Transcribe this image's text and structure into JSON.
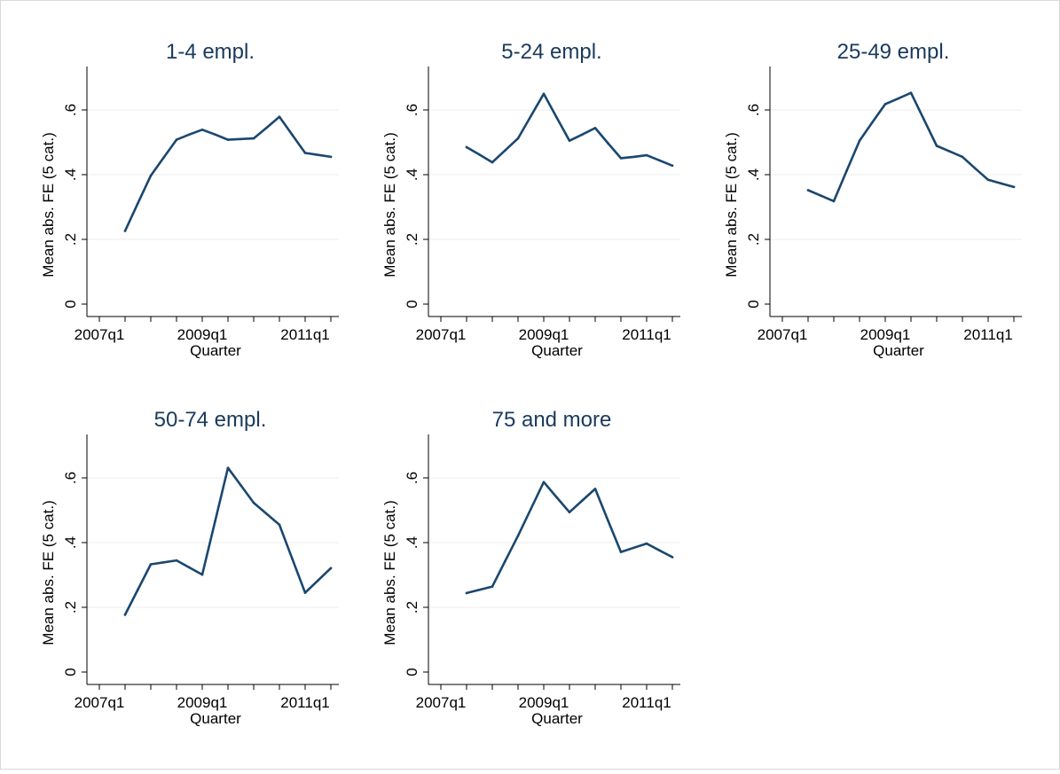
{
  "figure": {
    "background": "#ffffff",
    "frame_color": "#d9d9d9"
  },
  "chart_data": [
    {
      "type": "line",
      "title": "1-4 empl.",
      "xlabel": "Quarter",
      "ylabel": "Mean abs. FE (5 cat.)",
      "x_ticks": [
        "2007q1",
        "2009q1",
        "2011q1"
      ],
      "y_ticks": [
        "0",
        ".2",
        ".4",
        ".6"
      ],
      "ylim": [
        0,
        0.72
      ],
      "grid": true,
      "color": "#1a476f",
      "x": [
        "2007q3",
        "2007q4",
        "2008q1",
        "2008q2",
        "2008q3",
        "2008q4",
        "2009q1",
        "2009q2",
        "2009q3",
        "2009q4",
        "2010q1",
        "2010q2",
        "2010q3",
        "2010q4",
        "2011q1",
        "2011q2",
        "2011q3"
      ],
      "values": [
        0.226,
        0.312,
        0.397,
        0.453,
        0.508,
        0.524,
        0.539,
        0.524,
        0.508,
        0.51,
        0.512,
        0.545,
        0.579,
        0.523,
        0.467,
        0.461,
        0.455
      ]
    },
    {
      "type": "line",
      "title": "5-24 empl.",
      "xlabel": "Quarter",
      "ylabel": "Mean abs. FE (5 cat.)",
      "x_ticks": [
        "2007q1",
        "2009q1",
        "2011q1"
      ],
      "y_ticks": [
        "0",
        ".2",
        ".4",
        ".6"
      ],
      "ylim": [
        0,
        0.72
      ],
      "grid": true,
      "color": "#1a476f",
      "x": [
        "2007q3",
        "2007q4",
        "2008q1",
        "2008q2",
        "2008q3",
        "2008q4",
        "2009q1",
        "2009q2",
        "2009q3",
        "2009q4",
        "2010q1",
        "2010q2",
        "2010q3",
        "2010q4",
        "2011q1",
        "2011q2",
        "2011q3"
      ],
      "values": [
        0.485,
        0.462,
        0.438,
        0.475,
        0.512,
        0.581,
        0.65,
        0.577,
        0.505,
        0.524,
        0.544,
        0.497,
        0.451,
        0.455,
        0.46,
        0.444,
        0.428
      ]
    },
    {
      "type": "line",
      "title": "25-49 empl.",
      "xlabel": "Quarter",
      "ylabel": "Mean abs. FE (5 cat.)",
      "x_ticks": [
        "2007q1",
        "2009q1",
        "2011q1"
      ],
      "y_ticks": [
        "0",
        ".2",
        ".4",
        ".6"
      ],
      "ylim": [
        0,
        0.72
      ],
      "grid": true,
      "color": "#1a476f",
      "x": [
        "2007q3",
        "2007q4",
        "2008q1",
        "2008q2",
        "2008q3",
        "2008q4",
        "2009q1",
        "2009q2",
        "2009q3",
        "2009q4",
        "2010q1",
        "2010q2",
        "2010q3",
        "2010q4",
        "2011q1",
        "2011q2",
        "2011q3"
      ],
      "values": [
        0.352,
        0.335,
        0.318,
        0.412,
        0.505,
        0.562,
        0.618,
        0.635,
        0.653,
        0.571,
        0.489,
        0.472,
        0.455,
        0.419,
        0.384,
        0.373,
        0.362
      ]
    },
    {
      "type": "line",
      "title": "50-74 empl.",
      "xlabel": "Quarter",
      "ylabel": "Mean abs. FE (5 cat.)",
      "x_ticks": [
        "2007q1",
        "2009q1",
        "2011q1"
      ],
      "y_ticks": [
        "0",
        ".2",
        ".4",
        ".6"
      ],
      "ylim": [
        0,
        0.72
      ],
      "grid": true,
      "color": "#1a476f",
      "x": [
        "2007q3",
        "2007q4",
        "2008q1",
        "2008q2",
        "2008q3",
        "2008q4",
        "2009q1",
        "2009q2",
        "2009q3",
        "2009q4",
        "2010q1",
        "2010q2",
        "2010q3",
        "2010q4",
        "2011q1",
        "2011q2",
        "2011q3"
      ],
      "values": [
        0.177,
        0.255,
        0.333,
        0.339,
        0.345,
        0.323,
        0.301,
        0.466,
        0.631,
        0.577,
        0.523,
        0.489,
        0.455,
        0.35,
        0.245,
        0.283,
        0.321
      ]
    },
    {
      "type": "line",
      "title": "75 and more",
      "xlabel": "Quarter",
      "ylabel": "Mean abs. FE (5 cat.)",
      "x_ticks": [
        "2007q1",
        "2009q1",
        "2011q1"
      ],
      "y_ticks": [
        "0",
        ".2",
        ".4",
        ".6"
      ],
      "ylim": [
        0,
        0.72
      ],
      "grid": true,
      "color": "#1a476f",
      "x": [
        "2007q3",
        "2007q4",
        "2008q1",
        "2008q2",
        "2008q3",
        "2008q4",
        "2009q1",
        "2009q2",
        "2009q3",
        "2009q4",
        "2010q1",
        "2010q2",
        "2010q3",
        "2010q4",
        "2011q1",
        "2011q2",
        "2011q3"
      ],
      "values": [
        0.244,
        0.254,
        0.264,
        0.343,
        0.421,
        0.504,
        0.587,
        0.54,
        0.494,
        0.53,
        0.566,
        0.468,
        0.371,
        0.384,
        0.397,
        0.376,
        0.355
      ]
    }
  ]
}
